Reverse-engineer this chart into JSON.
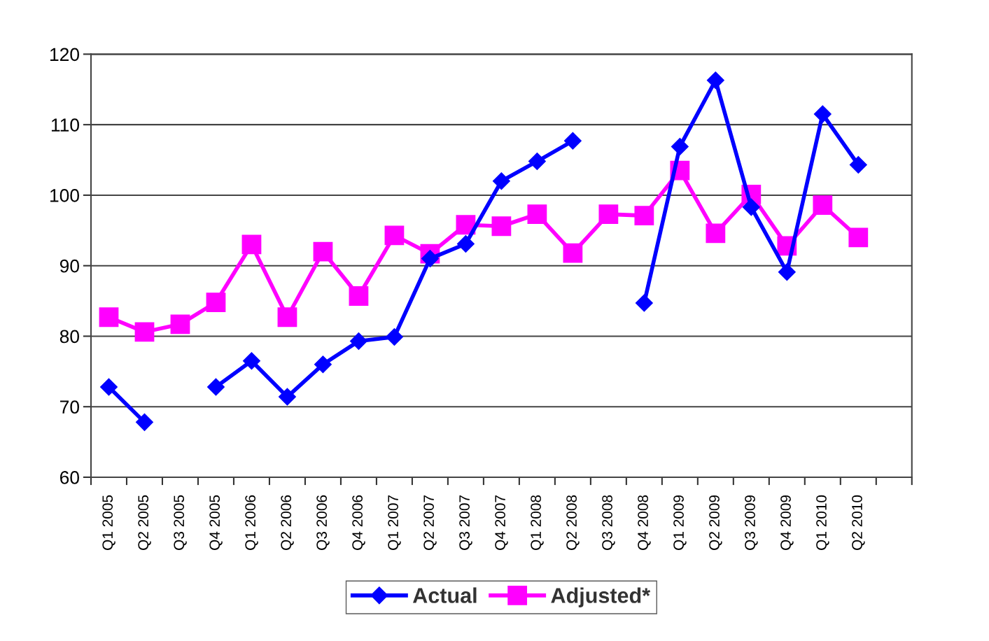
{
  "chart_data": {
    "type": "line",
    "categories": [
      "Q1 2005",
      "Q2 2005",
      "Q3 2005",
      "Q4 2005",
      "Q1 2006",
      "Q2 2006",
      "Q3 2006",
      "Q4 2006",
      "Q1 2007",
      "Q2 2007",
      "Q3 2007",
      "Q4 2007",
      "Q1 2008",
      "Q2 2008",
      "Q3 2008",
      "Q4 2008",
      "Q1 2009",
      "Q2 2009",
      "Q3 2009",
      "Q4 2009",
      "Q1 2010",
      "Q2 2010",
      null
    ],
    "series": [
      {
        "name": "Actual",
        "color": "#0000ff",
        "marker": "diamond",
        "values": [
          72.8,
          67.8,
          null,
          72.8,
          76.5,
          71.4,
          76.0,
          79.3,
          79.9,
          91.0,
          93.1,
          102.0,
          104.8,
          107.7,
          null,
          84.7,
          106.9,
          116.3,
          98.3,
          89.1,
          111.5,
          104.3,
          null
        ]
      },
      {
        "name": "Adjusted*",
        "color": "#ff00ff",
        "marker": "square",
        "values": [
          82.7,
          80.6,
          81.7,
          84.8,
          93.0,
          82.7,
          92.0,
          85.7,
          94.3,
          91.7,
          95.8,
          95.6,
          97.3,
          91.8,
          97.3,
          97.1,
          103.5,
          94.6,
          100.1,
          92.8,
          98.6,
          94.0,
          null
        ]
      }
    ],
    "ylim": [
      60,
      120
    ],
    "yticks": [
      60,
      70,
      80,
      90,
      100,
      110,
      120
    ],
    "grid": "y",
    "legend": "bottom",
    "line_style": "solid"
  }
}
